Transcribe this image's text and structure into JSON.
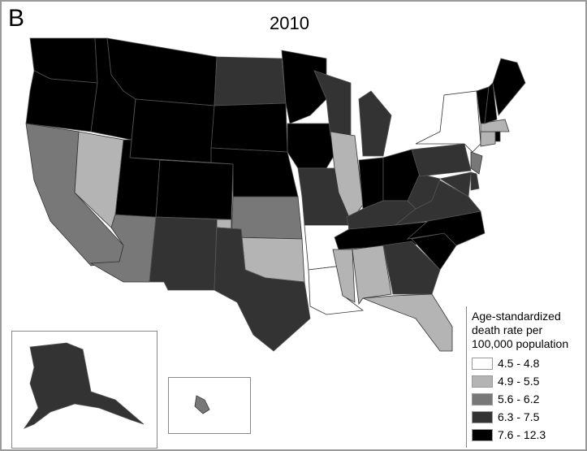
{
  "panel_label": "B",
  "title": "2010",
  "legend": {
    "title_lines": [
      "Age-standardized",
      "death rate per",
      "100,000 population"
    ],
    "classes": [
      {
        "label": "4.5 - 4.8",
        "color": "#ffffff"
      },
      {
        "label": "4.9 - 5.5",
        "color": "#b4b4b4"
      },
      {
        "label": "5.6 - 6.2",
        "color": "#787878"
      },
      {
        "label": "6.3 - 7.5",
        "color": "#333333"
      },
      {
        "label": "7.6 - 12.3",
        "color": "#000000"
      }
    ]
  },
  "states": {
    "WA": 4,
    "OR": 4,
    "CA": 2,
    "NV": 1,
    "ID": 4,
    "MT": 4,
    "WY": 4,
    "UT": 4,
    "CO": 4,
    "AZ": 2,
    "NM": 3,
    "ND": 3,
    "SD": 4,
    "NE": 4,
    "KS": 2,
    "OK": 1,
    "TX": 3,
    "MN": 4,
    "IA": 4,
    "MO": 3,
    "AR": 0,
    "LA": 0,
    "WI": 3,
    "IL": 1,
    "MI": 3,
    "IN": 4,
    "OH": 4,
    "KY": 3,
    "TN": 4,
    "MS": 1,
    "AL": 1,
    "GA": 3,
    "FL": 1,
    "SC": 4,
    "NC": 4,
    "VA": 3,
    "WV": 3,
    "PA": 3,
    "NY": 0,
    "NJ": 2,
    "MD": 3,
    "DE": 3,
    "CT": 1,
    "RI": 4,
    "MA": 1,
    "VT": 4,
    "NH": 4,
    "ME": 4,
    "AK": 3,
    "HI": 2
  }
}
